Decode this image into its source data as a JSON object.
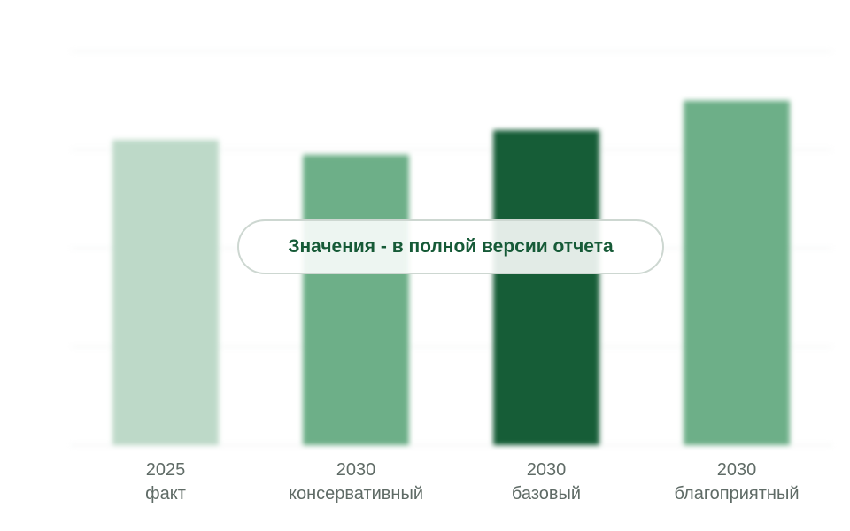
{
  "chart_data": {
    "type": "bar",
    "categories": [
      [
        "2025",
        "факт"
      ],
      [
        "2030",
        "консервативный"
      ],
      [
        "2030",
        "базовый"
      ],
      [
        "2030",
        "благоприятный"
      ]
    ],
    "values": [
      31,
      29.5,
      32,
      35
    ],
    "bar_colors": [
      "#bdd9c8",
      "#6daf88",
      "#165d37",
      "#6daf88"
    ],
    "grid_color": "#f2f4f3",
    "ylim": [
      0,
      40
    ],
    "grid": true,
    "title": "",
    "xlabel": "",
    "ylabel": ""
  },
  "overlay": {
    "text": "Значения - в полной версии отчета"
  }
}
